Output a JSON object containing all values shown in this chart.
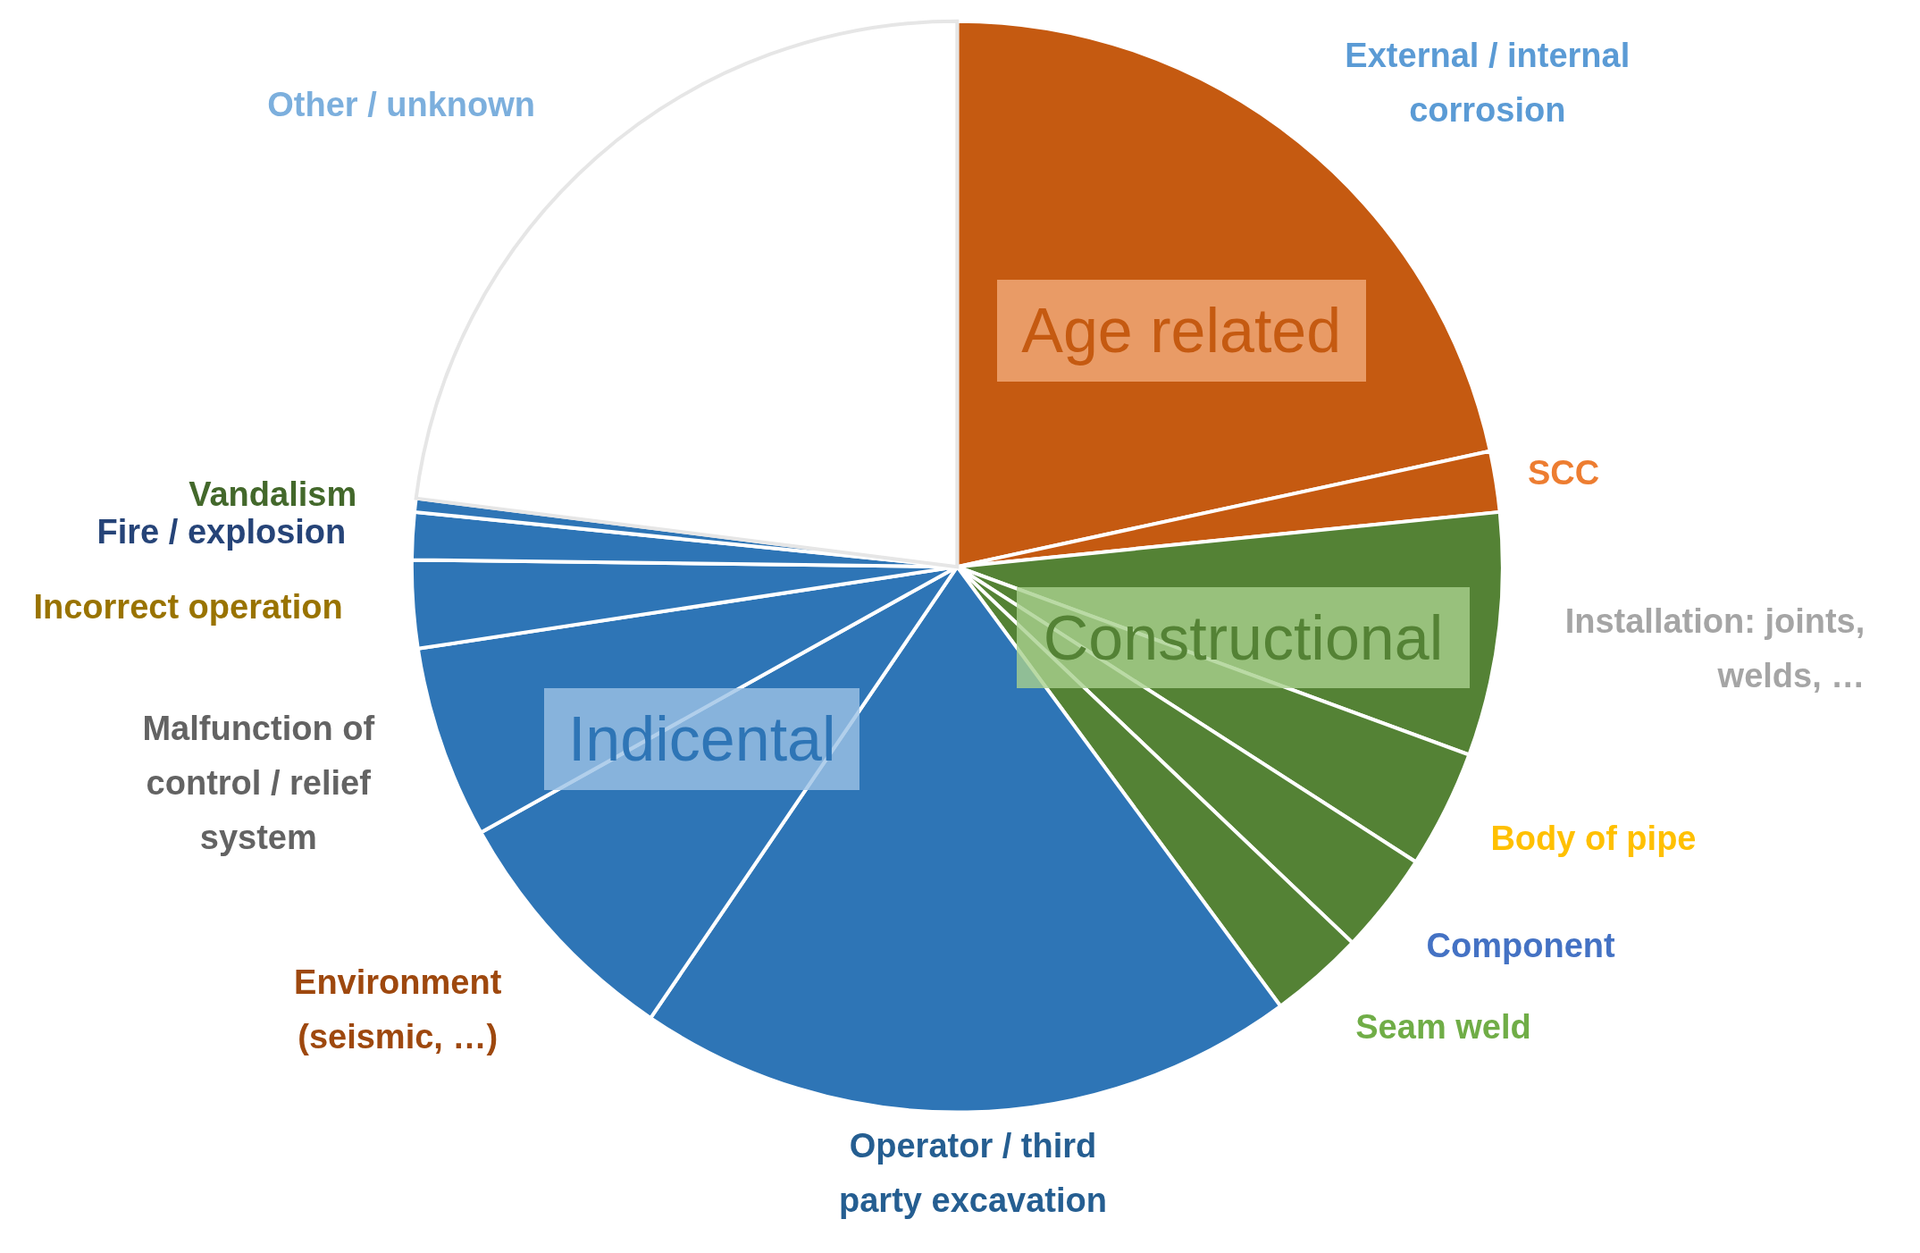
{
  "chart_data": {
    "type": "pie",
    "categories": [
      "External / internal corrosion",
      "SCC",
      "Installation: joints, welds, …",
      "Body of pipe",
      "Component",
      "Seam weld",
      "Operator / third party excavation",
      "Environment (seismic, …)",
      "Malfunction of control / relief system",
      "Incorrect operation",
      "Fire / explosion",
      "Vandalism",
      "Other / unknown"
    ],
    "values": [
      21.6,
      1.8,
      7.2,
      3.5,
      3.0,
      2.8,
      19.6,
      7.4,
      5.7,
      2.6,
      1.4,
      0.4,
      23.0
    ],
    "colors": [
      "#c55a11",
      "#c55a11",
      "#548235",
      "#548235",
      "#548235",
      "#548235",
      "#2e75b6",
      "#2e75b6",
      "#2e75b6",
      "#2e75b6",
      "#2e75b6",
      "#2e75b6",
      "#ffffff"
    ],
    "annotations": [
      "Age related",
      "Constructional",
      "Indicental"
    ]
  }
}
